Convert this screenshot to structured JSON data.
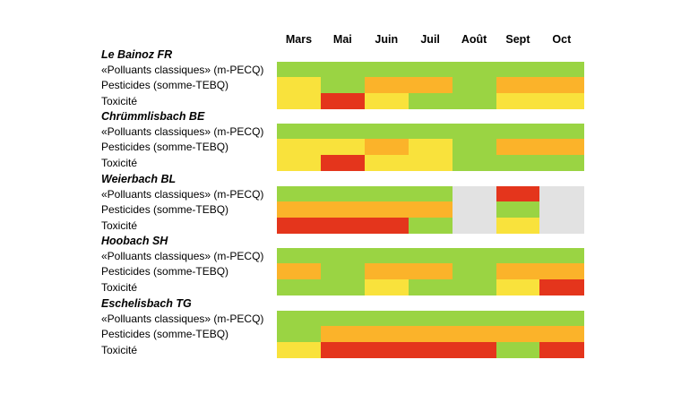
{
  "months": [
    "Mars",
    "Mai",
    "Juin",
    "Juil",
    "Août",
    "Sept",
    "Oct"
  ],
  "colors": {
    "G": "#9ad443",
    "Y": "#f9e23c",
    "O": "#fbb32a",
    "R": "#e4351c",
    "N": "#e2e2e2"
  },
  "legend_codes": {
    "G": "green",
    "Y": "yellow",
    "O": "orange",
    "R": "red",
    "N": "no data"
  },
  "chart_data": {
    "type": "heatmap",
    "categories": [
      "Mars",
      "Mai",
      "Juin",
      "Juil",
      "Août",
      "Sept",
      "Oct"
    ],
    "sites": [
      {
        "name": "Le Bainoz FR",
        "rows": [
          {
            "label": "«Polluants classiques» (m-PECQ)",
            "values": [
              "G",
              "G",
              "G",
              "G",
              "G",
              "G",
              "G"
            ]
          },
          {
            "label": "Pesticides (somme-TEBQ)",
            "values": [
              "Y",
              "G",
              "O",
              "O",
              "G",
              "O",
              "O"
            ]
          },
          {
            "label": "Toxicité",
            "values": [
              "Y",
              "R",
              "Y",
              "G",
              "G",
              "Y",
              "Y"
            ]
          }
        ]
      },
      {
        "name": "Chrümmlisbach BE",
        "rows": [
          {
            "label": "«Polluants classiques» (m-PECQ)",
            "values": [
              "G",
              "G",
              "G",
              "G",
              "G",
              "G",
              "G"
            ]
          },
          {
            "label": "Pesticides (somme-TEBQ)",
            "values": [
              "Y",
              "Y",
              "O",
              "Y",
              "G",
              "O",
              "O"
            ]
          },
          {
            "label": "Toxicité",
            "values": [
              "Y",
              "R",
              "Y",
              "Y",
              "G",
              "G",
              "G"
            ]
          }
        ]
      },
      {
        "name": "Weierbach BL",
        "rows": [
          {
            "label": "«Polluants classiques» (m-PECQ)",
            "values": [
              "G",
              "G",
              "G",
              "G",
              "N",
              "R",
              "N"
            ]
          },
          {
            "label": "Pesticides (somme-TEBQ)",
            "values": [
              "O",
              "O",
              "O",
              "O",
              "N",
              "G",
              "N"
            ]
          },
          {
            "label": "Toxicité",
            "values": [
              "R",
              "R",
              "R",
              "G",
              "N",
              "Y",
              "N"
            ]
          }
        ]
      },
      {
        "name": "Hoobach SH",
        "rows": [
          {
            "label": "«Polluants classiques» (m-PECQ)",
            "values": [
              "G",
              "G",
              "G",
              "G",
              "G",
              "G",
              "G"
            ]
          },
          {
            "label": "Pesticides (somme-TEBQ)",
            "values": [
              "O",
              "G",
              "O",
              "O",
              "G",
              "O",
              "O"
            ]
          },
          {
            "label": "Toxicité",
            "values": [
              "G",
              "G",
              "Y",
              "G",
              "G",
              "Y",
              "R"
            ]
          }
        ]
      },
      {
        "name": "Eschelisbach TG",
        "rows": [
          {
            "label": "«Polluants classiques» (m-PECQ)",
            "values": [
              "G",
              "G",
              "G",
              "G",
              "G",
              "G",
              "G"
            ]
          },
          {
            "label": "Pesticides (somme-TEBQ)",
            "values": [
              "G",
              "O",
              "O",
              "O",
              "O",
              "O",
              "O"
            ]
          },
          {
            "label": "Toxicité",
            "values": [
              "Y",
              "R",
              "R",
              "R",
              "R",
              "G",
              "R"
            ]
          }
        ]
      }
    ]
  }
}
